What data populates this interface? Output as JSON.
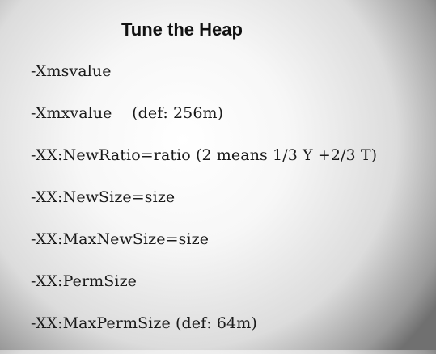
{
  "slide": {
    "title": "Tune the Heap",
    "options": [
      "-Xmsvalue",
      "-Xmxvalue    (def: 256m)",
      "-XX:NewRatio=ratio (2 means 1/3 Y +2/3 T)",
      "-XX:NewSize=size",
      "-XX:MaxNewSize=size",
      "-XX:PermSize",
      "-XX:MaxPermSize (def: 64m)"
    ]
  }
}
